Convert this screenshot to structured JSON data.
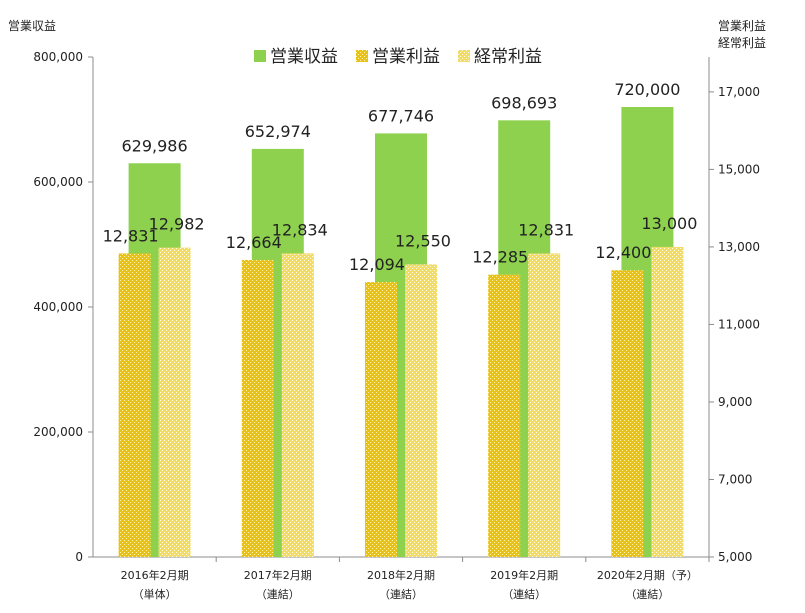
{
  "chart_data": {
    "type": "bar",
    "left_axis_title": "営業収益",
    "right_axis_title_lines": [
      "営業利益",
      "経常利益"
    ],
    "categories": [
      [
        "2016年2月期",
        "（単体）"
      ],
      [
        "2017年2月期",
        "（連結）"
      ],
      [
        "2018年2月期",
        "（連結）"
      ],
      [
        "2019年2月期",
        "（連結）"
      ],
      [
        "2020年2月期（予）",
        "（連結）"
      ]
    ],
    "left_axis": {
      "min": 0,
      "max": 800000,
      "ticks": [
        0,
        200000,
        400000,
        600000,
        800000
      ],
      "tick_labels": [
        "0",
        "200,000",
        "400,000",
        "600,000",
        "800,000"
      ]
    },
    "right_axis": {
      "min": 5000,
      "max": 17900,
      "ticks": [
        5000,
        7000,
        9000,
        11000,
        13000,
        15000,
        17000
      ],
      "tick_labels": [
        "5,000",
        "7,000",
        "9,000",
        "11,000",
        "13,000",
        "15,000",
        "17,000"
      ]
    },
    "series": [
      {
        "name": "営業収益",
        "axis": "left",
        "color": "#8dd14f",
        "values": [
          629986,
          652974,
          677746,
          698693,
          720000
        ],
        "labels": [
          "629,986",
          "652,974",
          "677,746",
          "698,693",
          "720,000"
        ]
      },
      {
        "name": "営業利益",
        "axis": "right",
        "color": "#e8c21a",
        "values": [
          12831,
          12664,
          12094,
          12285,
          12400
        ],
        "labels": [
          "12,831",
          "12,664",
          "12,094",
          "12,285",
          "12,400"
        ]
      },
      {
        "name": "経常利益",
        "axis": "right",
        "color": "#f1dc6a",
        "values": [
          12982,
          12834,
          12550,
          12831,
          13000
        ],
        "labels": [
          "12,982",
          "12,834",
          "12,550",
          "12,831",
          "13,000"
        ]
      }
    ],
    "legend_position": "top-center",
    "grid": false
  }
}
